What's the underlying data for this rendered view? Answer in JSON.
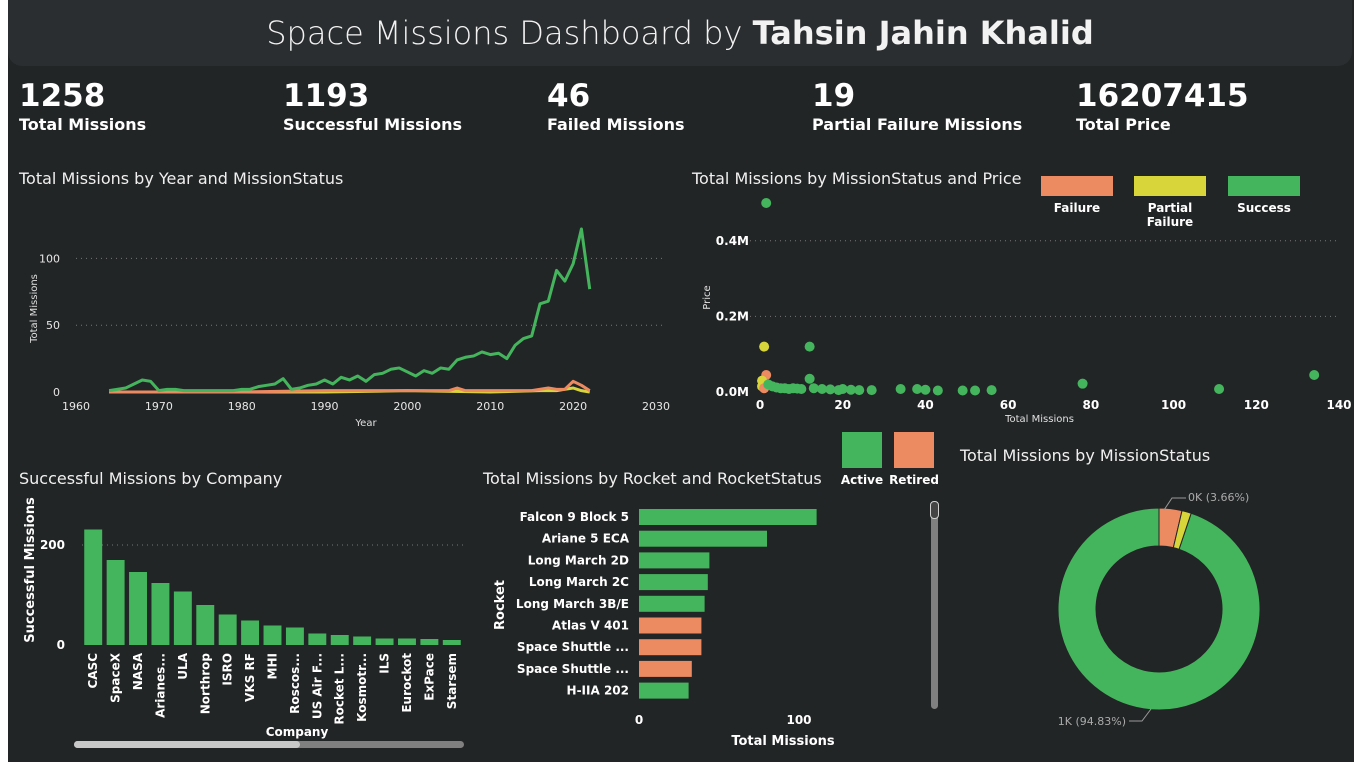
{
  "header": {
    "title_prefix": "Space Missions Dashboard by ",
    "title_author": "Tahsin Jahin Khalid"
  },
  "kpis": [
    {
      "value": "1258",
      "label": "Total Missions"
    },
    {
      "value": "1193",
      "label": "Successful Missions"
    },
    {
      "value": "46",
      "label": "Failed Missions"
    },
    {
      "value": "19",
      "label": "Partial Failure Missions"
    },
    {
      "value": "16207415",
      "label": "Total Price"
    }
  ],
  "colors": {
    "success": "#45b55d",
    "failure": "#ec8a62",
    "partial": "#d8d53a",
    "active": "#45b55d",
    "retired": "#ec8a62"
  },
  "chart_data": [
    {
      "type": "line",
      "title": "Total Missions by Year and MissionStatus",
      "xlabel": "Year",
      "ylabel": "Total Missions",
      "xlim": [
        1960,
        2030
      ],
      "ylim": [
        0,
        125
      ],
      "xticks": [
        "1960",
        "1970",
        "1980",
        "1990",
        "2000",
        "2010",
        "2020",
        "2030"
      ],
      "yticks": [
        "0",
        "50",
        "100"
      ],
      "grid": true,
      "series": [
        {
          "name": "Success",
          "color": "#45b55d",
          "x": [
            1964,
            1966,
            1967,
            1968,
            1969,
            1970,
            1971,
            1972,
            1973,
            1974,
            1975,
            1976,
            1977,
            1978,
            1979,
            1980,
            1981,
            1982,
            1983,
            1984,
            1985,
            1986,
            1987,
            1988,
            1989,
            1990,
            1991,
            1992,
            1993,
            1994,
            1995,
            1996,
            1997,
            1998,
            1999,
            2000,
            2001,
            2002,
            2003,
            2004,
            2005,
            2006,
            2007,
            2008,
            2009,
            2010,
            2011,
            2012,
            2013,
            2014,
            2015,
            2016,
            2017,
            2018,
            2019,
            2020,
            2021,
            2022
          ],
          "y": [
            1,
            3,
            6,
            9,
            8,
            1,
            2,
            2,
            1,
            1,
            1,
            1,
            1,
            1,
            1,
            2,
            2,
            4,
            5,
            6,
            10,
            2,
            3,
            5,
            6,
            9,
            6,
            11,
            9,
            12,
            8,
            13,
            14,
            17,
            18,
            15,
            12,
            16,
            14,
            18,
            17,
            24,
            26,
            27,
            30,
            28,
            29,
            25,
            35,
            40,
            42,
            66,
            68,
            91,
            83,
            96,
            122,
            77
          ]
        },
        {
          "name": "Failure",
          "color": "#ec8a62",
          "x": [
            1964,
            1970,
            1980,
            1990,
            2000,
            2005,
            2006,
            2007,
            2010,
            2015,
            2017,
            2018,
            2019,
            2020,
            2021,
            2022
          ],
          "y": [
            0,
            0,
            0,
            1,
            1,
            1,
            3,
            1,
            1,
            1,
            3,
            2,
            2,
            8,
            5,
            1
          ]
        },
        {
          "name": "Partial Failure",
          "color": "#d8d53a",
          "x": [
            1964,
            1980,
            1990,
            2000,
            2010,
            2016,
            2018,
            2019,
            2020,
            2021,
            2022
          ],
          "y": [
            0,
            0,
            0,
            1,
            0,
            1,
            1,
            2,
            3,
            1,
            0
          ]
        }
      ]
    },
    {
      "type": "scatter",
      "title": "Total Missions by MissionStatus and Price",
      "xlabel": "Total Missions",
      "ylabel": "Price",
      "xlim": [
        0,
        140
      ],
      "ylim": [
        0,
        0.5
      ],
      "xticks": [
        "0",
        "20",
        "40",
        "60",
        "80",
        "100",
        "120",
        "140"
      ],
      "yticks": [
        "0.0M",
        "0.2M",
        "0.4M"
      ],
      "legend": [
        "Failure",
        "Partial Failure",
        "Success"
      ],
      "legend_position": "top-right",
      "points": [
        {
          "x": 1.5,
          "y": 0.5,
          "s": "Success"
        },
        {
          "x": 1,
          "y": 0.12,
          "s": "Partial Failure"
        },
        {
          "x": 12,
          "y": 0.12,
          "s": "Success"
        },
        {
          "x": 1.5,
          "y": 0.045,
          "s": "Failure"
        },
        {
          "x": 0.5,
          "y": 0.03,
          "s": "Partial Failure"
        },
        {
          "x": 0.5,
          "y": 0.015,
          "s": "Partial Failure"
        },
        {
          "x": 1,
          "y": 0.01,
          "s": "Failure"
        },
        {
          "x": 2,
          "y": 0.02,
          "s": "Success"
        },
        {
          "x": 3,
          "y": 0.015,
          "s": "Success"
        },
        {
          "x": 4,
          "y": 0.012,
          "s": "Success"
        },
        {
          "x": 5,
          "y": 0.01,
          "s": "Success"
        },
        {
          "x": 6,
          "y": 0.01,
          "s": "Success"
        },
        {
          "x": 7,
          "y": 0.008,
          "s": "Success"
        },
        {
          "x": 8,
          "y": 0.01,
          "s": "Success"
        },
        {
          "x": 9,
          "y": 0.009,
          "s": "Success"
        },
        {
          "x": 10,
          "y": 0.008,
          "s": "Success"
        },
        {
          "x": 12,
          "y": 0.035,
          "s": "Success"
        },
        {
          "x": 13,
          "y": 0.01,
          "s": "Success"
        },
        {
          "x": 15,
          "y": 0.008,
          "s": "Success"
        },
        {
          "x": 17,
          "y": 0.007,
          "s": "Success"
        },
        {
          "x": 19,
          "y": 0.005,
          "s": "Success"
        },
        {
          "x": 20,
          "y": 0.008,
          "s": "Success"
        },
        {
          "x": 22,
          "y": 0.006,
          "s": "Success"
        },
        {
          "x": 24,
          "y": 0.005,
          "s": "Success"
        },
        {
          "x": 27,
          "y": 0.005,
          "s": "Success"
        },
        {
          "x": 34,
          "y": 0.008,
          "s": "Success"
        },
        {
          "x": 38,
          "y": 0.008,
          "s": "Success"
        },
        {
          "x": 40,
          "y": 0.006,
          "s": "Success"
        },
        {
          "x": 43,
          "y": 0.004,
          "s": "Success"
        },
        {
          "x": 49,
          "y": 0.004,
          "s": "Success"
        },
        {
          "x": 52,
          "y": 0.004,
          "s": "Success"
        },
        {
          "x": 56,
          "y": 0.005,
          "s": "Success"
        },
        {
          "x": 78,
          "y": 0.022,
          "s": "Success"
        },
        {
          "x": 111,
          "y": 0.008,
          "s": "Success"
        },
        {
          "x": 134,
          "y": 0.045,
          "s": "Success"
        }
      ]
    },
    {
      "type": "bar",
      "title": "Successful Missions by Company",
      "xlabel": "Company",
      "ylabel": "Successful Missions",
      "ylim": [
        0,
        260
      ],
      "yticks": [
        "0",
        "200"
      ],
      "categories": [
        "CASC",
        "SpaceX",
        "NASA",
        "Arianes...",
        "ULA",
        "Northrop",
        "ISRO",
        "VKS RF",
        "MHI",
        "Roscos...",
        "US Air F...",
        "Rocket L...",
        "Kosmotr...",
        "ILS",
        "Eurockot",
        "ExPace",
        "Starsem"
      ],
      "values": [
        231,
        170,
        146,
        124,
        107,
        80,
        61,
        49,
        39,
        35,
        23,
        20,
        17,
        13,
        13,
        12,
        10
      ]
    },
    {
      "type": "bar",
      "orientation": "horizontal",
      "title": "Total Missions by Rocket and RocketStatus",
      "xlabel": "Total Missions",
      "ylabel": "Rocket",
      "xlim": [
        0,
        120
      ],
      "xticks": [
        "0",
        "100"
      ],
      "legend": [
        "Active",
        "Retired"
      ],
      "categories": [
        "Falcon 9 Block 5",
        "Ariane 5 ECA",
        "Long March 2D",
        "Long March 2C",
        "Long March 3B/E",
        "Atlas V 401",
        "Space Shuttle ...",
        "Space Shuttle ...",
        "H-IIA 202"
      ],
      "values": [
        111,
        80,
        44,
        43,
        41,
        39,
        39,
        33,
        31
      ],
      "status": [
        "Active",
        "Active",
        "Active",
        "Active",
        "Active",
        "Retired",
        "Retired",
        "Retired",
        "Active"
      ]
    },
    {
      "type": "pie",
      "donut": true,
      "title": "Total Missions by MissionStatus",
      "slices": [
        {
          "label": "Success",
          "value": 94.83,
          "color": "#45b55d"
        },
        {
          "label": "Failure",
          "value": 3.66,
          "color": "#ec8a62"
        },
        {
          "label": "Partial Failure",
          "value": 1.51,
          "color": "#d8d53a"
        }
      ],
      "labels": [
        "0K (3.66%)",
        "1K (94.83%)"
      ]
    }
  ]
}
